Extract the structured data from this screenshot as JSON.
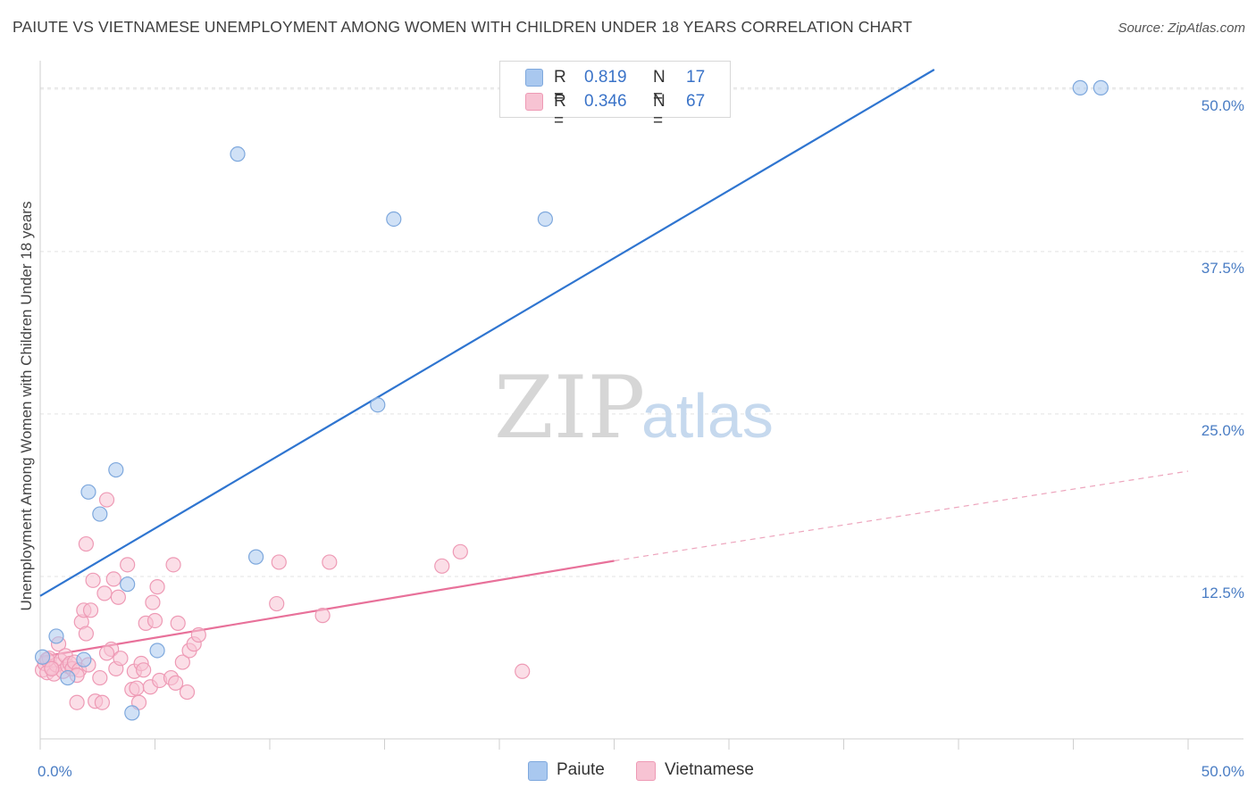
{
  "title": "PAIUTE VS VIETNAMESE UNEMPLOYMENT AMONG WOMEN WITH CHILDREN UNDER 18 YEARS CORRELATION CHART",
  "source": "Source: ZipAtlas.com",
  "watermark": {
    "zip": "ZIP",
    "atlas": "atlas"
  },
  "legend": {
    "rows": [
      {
        "r_label": "R =",
        "r_value": "0.819",
        "n_label": "N =",
        "n_value": "17",
        "color": "#a9c8ef",
        "stroke": "#7ea8dd"
      },
      {
        "r_label": "R =",
        "r_value": "0.346",
        "n_label": "N =",
        "n_value": "67",
        "color": "#f7c3d3",
        "stroke": "#ee9ab5"
      }
    ]
  },
  "bottom_legend": [
    {
      "label": "Paiute",
      "color": "#a9c8ef",
      "stroke": "#7ea8dd"
    },
    {
      "label": "Vietnamese",
      "color": "#f7c3d3",
      "stroke": "#ee9ab5"
    }
  ],
  "chart_data": {
    "type": "scatter",
    "title": "PAIUTE VS VIETNAMESE UNEMPLOYMENT AMONG WOMEN WITH CHILDREN UNDER 18 YEARS CORRELATION CHART",
    "xlabel": "",
    "ylabel": "Unemployment Among Women with Children Under 18 years",
    "xlim": [
      0,
      50
    ],
    "ylim": [
      0,
      51.5
    ],
    "x_tick_labels": [
      {
        "value": 0,
        "label": "0.0%"
      },
      {
        "value": 50,
        "label": "50.0%"
      }
    ],
    "y_tick_labels": [
      {
        "value": 12.5,
        "label": "12.5%"
      },
      {
        "value": 25,
        "label": "25.0%"
      },
      {
        "value": 37.5,
        "label": "37.5%"
      },
      {
        "value": 50,
        "label": "50.0%"
      }
    ],
    "x_minor_ticks": [
      0,
      5,
      10,
      15,
      20,
      25,
      30,
      35,
      40,
      45,
      50
    ],
    "grid": true,
    "series": [
      {
        "name": "Paiute",
        "color": "#a9c8ef",
        "stroke": "#7ea8dd",
        "points": [
          [
            0.1,
            6.3
          ],
          [
            0.7,
            7.9
          ],
          [
            1.2,
            4.7
          ],
          [
            1.9,
            6.1
          ],
          [
            2.1,
            19.0
          ],
          [
            2.6,
            17.3
          ],
          [
            3.3,
            20.7
          ],
          [
            3.8,
            11.9
          ],
          [
            4.0,
            2.0
          ],
          [
            5.1,
            6.8
          ],
          [
            8.6,
            45.0
          ],
          [
            9.4,
            14.0
          ],
          [
            14.7,
            25.7
          ],
          [
            15.4,
            40.0
          ],
          [
            22.0,
            40.0
          ],
          [
            45.3,
            50.1
          ],
          [
            46.2,
            50.1
          ]
        ],
        "trend": {
          "x": [
            0,
            50
          ],
          "y": [
            11.0,
            63.0
          ],
          "style": "solid"
        }
      },
      {
        "name": "Vietnamese",
        "color": "#f7c3d3",
        "stroke": "#ee9ab5",
        "points": [
          [
            0.1,
            5.3
          ],
          [
            0.2,
            5.8
          ],
          [
            0.3,
            5.1
          ],
          [
            0.4,
            6.2
          ],
          [
            0.5,
            5.5
          ],
          [
            0.6,
            5.0
          ],
          [
            0.7,
            5.7
          ],
          [
            0.8,
            7.3
          ],
          [
            0.9,
            6.0
          ],
          [
            1.0,
            5.2
          ],
          [
            1.1,
            6.4
          ],
          [
            1.2,
            5.6
          ],
          [
            1.3,
            5.8
          ],
          [
            1.4,
            5.4
          ],
          [
            1.5,
            5.9
          ],
          [
            1.6,
            2.8
          ],
          [
            1.7,
            5.3
          ],
          [
            1.8,
            9.0
          ],
          [
            1.9,
            9.9
          ],
          [
            2.0,
            8.1
          ],
          [
            2.0,
            15.0
          ],
          [
            2.1,
            5.7
          ],
          [
            2.2,
            9.9
          ],
          [
            2.3,
            12.2
          ],
          [
            2.4,
            2.9
          ],
          [
            2.6,
            4.7
          ],
          [
            2.7,
            2.8
          ],
          [
            2.8,
            11.2
          ],
          [
            2.9,
            18.4
          ],
          [
            3.1,
            6.9
          ],
          [
            3.2,
            12.3
          ],
          [
            3.3,
            5.4
          ],
          [
            3.4,
            10.9
          ],
          [
            3.5,
            6.2
          ],
          [
            3.8,
            13.4
          ],
          [
            4.0,
            3.8
          ],
          [
            4.1,
            5.2
          ],
          [
            4.2,
            3.9
          ],
          [
            4.3,
            2.8
          ],
          [
            4.4,
            5.8
          ],
          [
            4.6,
            8.9
          ],
          [
            4.8,
            4.0
          ],
          [
            4.9,
            10.5
          ],
          [
            5.0,
            9.1
          ],
          [
            5.1,
            11.7
          ],
          [
            5.2,
            4.5
          ],
          [
            5.7,
            4.7
          ],
          [
            5.8,
            13.4
          ],
          [
            5.9,
            4.3
          ],
          [
            6.0,
            8.9
          ],
          [
            6.2,
            5.9
          ],
          [
            6.4,
            3.6
          ],
          [
            6.5,
            6.8
          ],
          [
            6.7,
            7.3
          ],
          [
            6.9,
            8.0
          ],
          [
            10.3,
            10.4
          ],
          [
            10.4,
            13.6
          ],
          [
            12.3,
            9.5
          ],
          [
            12.6,
            13.6
          ],
          [
            17.5,
            13.3
          ],
          [
            18.3,
            14.4
          ],
          [
            21.0,
            5.2
          ],
          [
            0.3,
            6.1
          ],
          [
            0.5,
            5.4
          ],
          [
            1.6,
            4.9
          ],
          [
            2.9,
            6.6
          ],
          [
            4.5,
            5.3
          ]
        ],
        "trend": {
          "x": [
            0,
            25,
            50
          ],
          "y": [
            6.3,
            13.7,
            20.6
          ],
          "style": "solid-then-dashed"
        }
      }
    ]
  }
}
